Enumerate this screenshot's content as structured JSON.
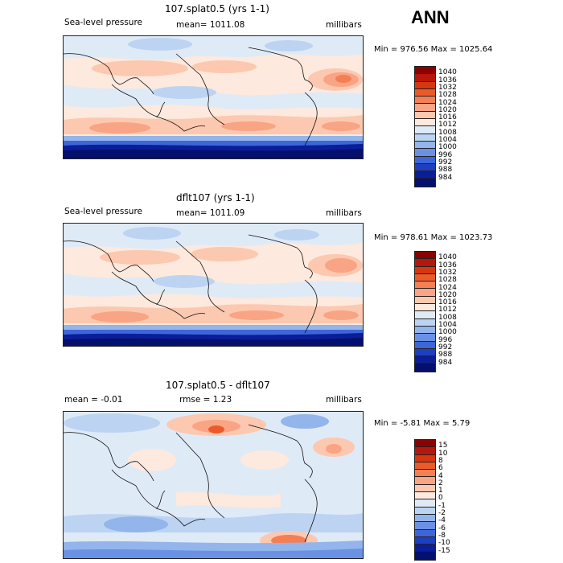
{
  "season": "ANN",
  "panels": [
    {
      "title": "107.splat0.5 (yrs 1-1)",
      "left": "Sea-level pressure",
      "center": "mean= 1011.08",
      "right": "millibars",
      "minmax": "Min = 976.56 Max = 1025.64",
      "colorbar": [
        "1040",
        "1036",
        "1032",
        "1028",
        "1024",
        "1020",
        "1016",
        "1012",
        "1008",
        "1004",
        "1000",
        "996",
        "992",
        "988",
        "984"
      ]
    },
    {
      "title": "dflt107 (yrs 1-1)",
      "left": "Sea-level pressure",
      "center": "mean= 1011.09",
      "right": "millibars",
      "minmax": "Min = 978.61 Max = 1023.73",
      "colorbar": [
        "1040",
        "1036",
        "1032",
        "1028",
        "1024",
        "1020",
        "1016",
        "1012",
        "1008",
        "1004",
        "1000",
        "996",
        "992",
        "988",
        "984"
      ]
    },
    {
      "title": "107.splat0.5 - dflt107",
      "left": "mean =   -0.01",
      "center": "rmse =    1.23",
      "right": "millibars",
      "minmax": "Min =  -5.81 Max =   5.79",
      "colorbar": [
        "15",
        "10",
        "8",
        "6",
        "4",
        "2",
        "1",
        "0",
        "-1",
        "-2",
        "-4",
        "-6",
        "-8",
        "-10",
        "-15"
      ]
    }
  ],
  "colors": {
    "abs_scale": [
      "#8b0000",
      "#b5170c",
      "#d8360f",
      "#ed5a2a",
      "#f47f55",
      "#f9a484",
      "#fcc8b0",
      "#fde9dd",
      "#dfeaf7",
      "#bcd4f2",
      "#93b5ec",
      "#6a91e4",
      "#3f66d8",
      "#1f3fc1",
      "#0b1e99",
      "#050f6d"
    ],
    "diff_scale": [
      "#8b0000",
      "#b5170c",
      "#d8360f",
      "#ed5a2a",
      "#f47f55",
      "#f9a484",
      "#fcc8b0",
      "#fde9dd",
      "#dfeaf7",
      "#bcd4f2",
      "#93b5ec",
      "#6a91e4",
      "#3f66d8",
      "#1f3fc1",
      "#0b1e99",
      "#050f6d"
    ]
  }
}
